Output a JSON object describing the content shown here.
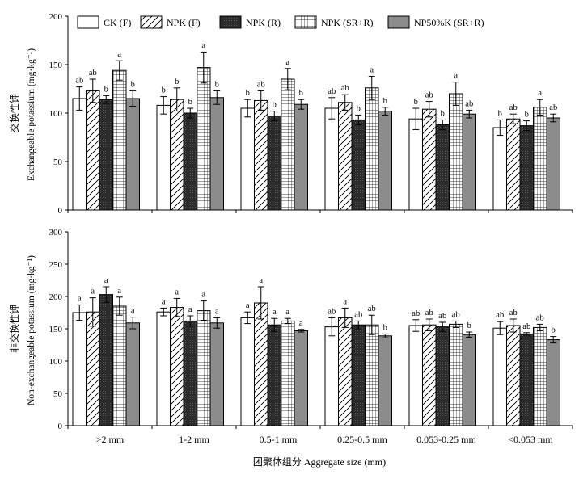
{
  "figure": {
    "xlabel": "团聚体组分 Aggregate size (mm)"
  },
  "legend": [
    {
      "key": "ck",
      "label": "CK (F)",
      "pattern": "white"
    },
    {
      "key": "npkf",
      "label": "NPK (F)",
      "pattern": "hatch"
    },
    {
      "key": "npkr",
      "label": "NPK (R)",
      "pattern": "dark"
    },
    {
      "key": "npksr",
      "label": "NPK (SR+R)",
      "pattern": "grid"
    },
    {
      "key": "np50",
      "label": "NP50%K (SR+R)",
      "pattern": "gray"
    }
  ],
  "colors": {
    "dark": "#2b2b2b",
    "gray": "#8c8c8c",
    "white": "#ffffff",
    "line": "#000000"
  },
  "chart_data": [
    {
      "type": "bar",
      "ylabel_cn": "交换性钾",
      "ylabel_en": "Exchangeable potassium (mg·kg⁻¹)",
      "ylim": [
        0,
        200
      ],
      "yticks": [
        0,
        50,
        100,
        150,
        200
      ],
      "categories": [
        ">2 mm",
        "1-2 mm",
        "0.5-1 mm",
        "0.25-0.5 mm",
        "0.053-0.25 mm",
        "<0.053 mm"
      ],
      "series": [
        {
          "name": "CK (F)",
          "values": [
            115,
            108,
            105,
            105,
            94,
            85
          ],
          "errors": [
            12,
            9,
            9,
            11,
            11,
            8
          ],
          "letters": [
            "ab",
            "b",
            "b",
            "ab",
            "b",
            "b"
          ]
        },
        {
          "name": "NPK (F)",
          "values": [
            123,
            114,
            113,
            111,
            104,
            94
          ],
          "errors": [
            12,
            12,
            10,
            8,
            8,
            5
          ],
          "letters": [
            "ab",
            "b",
            "ab",
            "ab",
            "ab",
            "ab"
          ]
        },
        {
          "name": "NPK (R)",
          "values": [
            114,
            100,
            97,
            93,
            88,
            87
          ],
          "errors": [
            4,
            5,
            5,
            5,
            5,
            5
          ],
          "letters": [
            "b",
            "b",
            "b",
            "b",
            "b",
            "b"
          ]
        },
        {
          "name": "NPK (SR+R)",
          "values": [
            144,
            147,
            135,
            126,
            120,
            106
          ],
          "errors": [
            10,
            16,
            11,
            12,
            12,
            8
          ],
          "letters": [
            "a",
            "a",
            "a",
            "a",
            "a",
            "a"
          ]
        },
        {
          "name": "NP50%K (SR+R)",
          "values": [
            115,
            116,
            109,
            102,
            99,
            95
          ],
          "errors": [
            8,
            7,
            5,
            4,
            4,
            4
          ],
          "letters": [
            "b",
            "b",
            "b",
            "b",
            "ab",
            "ab"
          ]
        }
      ]
    },
    {
      "type": "bar",
      "ylabel_cn": "非交换性钾",
      "ylabel_en": "Non-exchangeable potassium (mg·kg⁻¹)",
      "ylim": [
        0,
        300
      ],
      "yticks": [
        0,
        50,
        100,
        150,
        200,
        250,
        300
      ],
      "categories": [
        ">2 mm",
        "1-2 mm",
        "0.5-1 mm",
        "0.25-0.5 mm",
        "0.053-0.25 mm",
        "<0.053 mm"
      ],
      "series": [
        {
          "name": "CK (F)",
          "values": [
            175,
            176,
            167,
            153,
            155,
            151
          ],
          "errors": [
            12,
            6,
            9,
            14,
            9,
            10
          ],
          "letters": [
            "a",
            "a",
            "a",
            "ab",
            "ab",
            "ab"
          ]
        },
        {
          "name": "NPK (F)",
          "values": [
            176,
            183,
            190,
            167,
            156,
            155
          ],
          "errors": [
            22,
            14,
            25,
            15,
            9,
            10
          ],
          "letters": [
            "a",
            "a",
            "a",
            "a",
            "ab",
            "ab"
          ]
        },
        {
          "name": "NPK (R)",
          "values": [
            203,
            162,
            156,
            156,
            153,
            142
          ],
          "errors": [
            12,
            8,
            10,
            6,
            7,
            2
          ],
          "letters": [
            "a",
            "a",
            "a",
            "ab",
            "ab",
            "ab"
          ]
        },
        {
          "name": "NPK (SR+R)",
          "values": [
            185,
            178,
            162,
            156,
            157,
            152
          ],
          "errors": [
            14,
            15,
            4,
            15,
            5,
            5
          ],
          "letters": [
            "a",
            "a",
            "a",
            "ab",
            "ab",
            "ab"
          ]
        },
        {
          "name": "NP50%K (SR+R)",
          "values": [
            159,
            159,
            147,
            139,
            141,
            133
          ],
          "errors": [
            9,
            8,
            2,
            3,
            4,
            5
          ],
          "letters": [
            "a",
            "a",
            "a",
            "b",
            "b",
            "b"
          ]
        }
      ]
    }
  ]
}
